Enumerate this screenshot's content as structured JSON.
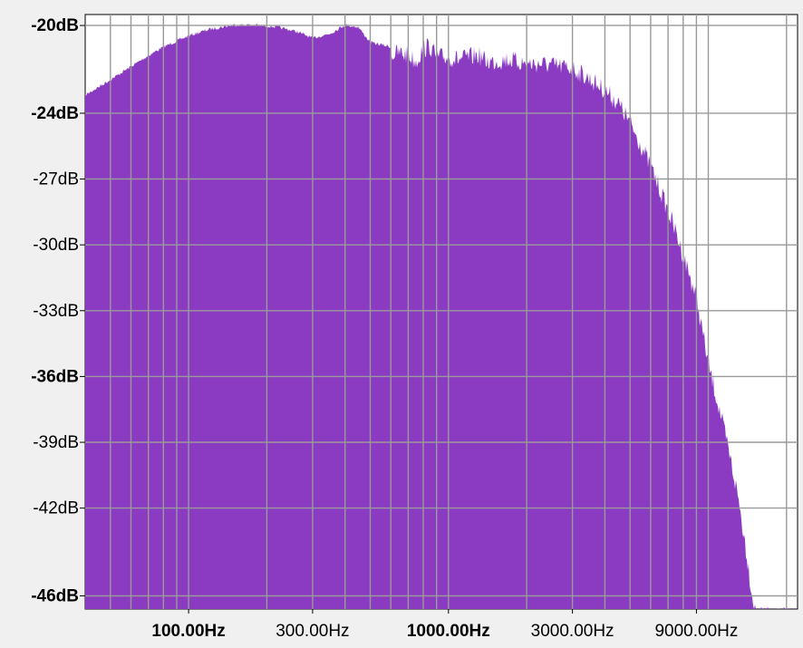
{
  "chart_data": {
    "type": "area",
    "title": "",
    "xlabel": "",
    "ylabel": "",
    "x_scale": "log",
    "xlim": [
      40,
      22050
    ],
    "ylim": [
      -46.6,
      -19.5
    ],
    "grid": true,
    "legend": "none",
    "fill_color": "#8a3bc1",
    "plot_background": "#ffffff",
    "grid_color": "#9a9a9a",
    "y_ticks": [
      {
        "value": -20,
        "label": "-20dB",
        "bold": true
      },
      {
        "value": -24,
        "label": "-24dB",
        "bold": true
      },
      {
        "value": -27,
        "label": "-27dB",
        "bold": false
      },
      {
        "value": -30,
        "label": "-30dB",
        "bold": false
      },
      {
        "value": -33,
        "label": "-33dB",
        "bold": false
      },
      {
        "value": -36,
        "label": "-36dB",
        "bold": true
      },
      {
        "value": -39,
        "label": "-39dB",
        "bold": false
      },
      {
        "value": -42,
        "label": "-42dB",
        "bold": false
      },
      {
        "value": -46,
        "label": "-46dB",
        "bold": true
      }
    ],
    "x_ticks": [
      {
        "value": 100,
        "label": "100.00Hz",
        "bold": true
      },
      {
        "value": 300,
        "label": "300.00Hz",
        "bold": false
      },
      {
        "value": 1000,
        "label": "1000.00Hz",
        "bold": true
      },
      {
        "value": 3000,
        "label": "3000.00Hz",
        "bold": false
      },
      {
        "value": 9000,
        "label": "9000.00Hz",
        "bold": false
      }
    ],
    "x_gridlines": [
      50,
      60,
      70,
      80,
      90,
      100,
      200,
      300,
      400,
      500,
      600,
      700,
      800,
      900,
      1000,
      2000,
      3000,
      4000,
      5000,
      6000,
      7000,
      8000,
      9000,
      10000,
      20000
    ],
    "series": [
      {
        "x": [
          40,
          50,
          60,
          70,
          80,
          100,
          120,
          150,
          180,
          220,
          260,
          300,
          350,
          400,
          450,
          500,
          550,
          600,
          650,
          700,
          750,
          800,
          850,
          900,
          1000,
          1100,
          1200,
          1300,
          1400,
          1500,
          1700,
          2000,
          2300,
          2600,
          3000,
          3500,
          4000,
          4500,
          5000,
          5500,
          6000,
          6500,
          7000,
          7500,
          8000,
          8500,
          9000,
          9500,
          10000,
          11000,
          12000,
          13000,
          14000,
          15000,
          16000,
          17000,
          18000,
          19000,
          20000,
          21000,
          22050
        ],
        "y": [
          -23.1,
          -22.4,
          -21.8,
          -21.3,
          -20.9,
          -20.4,
          -20.1,
          -19.9,
          -19.9,
          -20.0,
          -20.2,
          -20.5,
          -20.3,
          -19.9,
          -20.0,
          -20.7,
          -20.8,
          -20.9,
          -20.8,
          -20.9,
          -21.2,
          -20.6,
          -20.5,
          -21.0,
          -21.0,
          -21.1,
          -21.0,
          -20.9,
          -21.2,
          -21.2,
          -21.1,
          -21.3,
          -21.3,
          -21.4,
          -21.5,
          -22.0,
          -22.5,
          -23.1,
          -24.0,
          -25.0,
          -26.0,
          -27.0,
          -28.0,
          -29.0,
          -30.0,
          -31.0,
          -32.0,
          -33.5,
          -35.0,
          -37.0,
          -39.0,
          -41.0,
          -43.5,
          -46.2,
          -46.5,
          -46.5,
          -46.5,
          -46.5,
          -46.5,
          -46.5,
          -46.5
        ]
      }
    ]
  }
}
